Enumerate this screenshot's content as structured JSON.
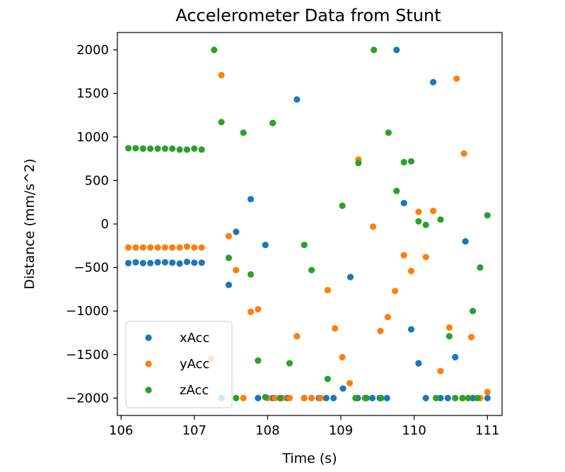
{
  "chart_data": {
    "type": "scatter",
    "title": "Accelerometer Data from Stunt",
    "xlabel": "Time (s)",
    "ylabel": "Distance (mm/s^2)",
    "xlim": [
      105.95,
      111.2
    ],
    "ylim": [
      -2200,
      2200
    ],
    "xticks": [
      106,
      107,
      108,
      109,
      110,
      111
    ],
    "xtick_labels": [
      "106",
      "107",
      "108",
      "109",
      "110",
      "111"
    ],
    "yticks": [
      -2000,
      -1500,
      -1000,
      -500,
      0,
      500,
      1000,
      1500,
      2000
    ],
    "ytick_labels": [
      "−2000",
      "−1500",
      "−1000",
      "−500",
      "0",
      "500",
      "1000",
      "1500",
      "2000"
    ],
    "grid": false,
    "legend_position": "lower-left",
    "series": [
      {
        "name": "xAcc",
        "color": "#1f77b4",
        "points": [
          [
            106.1,
            -450
          ],
          [
            106.2,
            -440
          ],
          [
            106.3,
            -450
          ],
          [
            106.4,
            -450
          ],
          [
            106.5,
            -440
          ],
          [
            106.6,
            -440
          ],
          [
            106.7,
            -445
          ],
          [
            106.8,
            -455
          ],
          [
            106.9,
            -435
          ],
          [
            107.0,
            -445
          ],
          [
            107.1,
            -445
          ],
          [
            107.37,
            -2000
          ],
          [
            107.47,
            -700
          ],
          [
            107.57,
            -90
          ],
          [
            107.77,
            285
          ],
          [
            107.87,
            -2000
          ],
          [
            107.97,
            -240
          ],
          [
            108.07,
            -2000
          ],
          [
            108.17,
            -2000
          ],
          [
            108.27,
            -2000
          ],
          [
            108.4,
            1430
          ],
          [
            108.5,
            -2000
          ],
          [
            108.6,
            -2000
          ],
          [
            108.7,
            -2000
          ],
          [
            108.8,
            -2000
          ],
          [
            108.9,
            -2000
          ],
          [
            109.03,
            -1890
          ],
          [
            109.13,
            -610
          ],
          [
            109.23,
            -2000
          ],
          [
            109.33,
            -2000
          ],
          [
            109.43,
            -2000
          ],
          [
            109.53,
            -2000
          ],
          [
            109.63,
            -2000
          ],
          [
            109.76,
            2000
          ],
          [
            109.86,
            240
          ],
          [
            109.96,
            -1210
          ],
          [
            110.06,
            -1600
          ],
          [
            110.16,
            -2000
          ],
          [
            110.26,
            1630
          ],
          [
            110.36,
            -2000
          ],
          [
            110.46,
            -2000
          ],
          [
            110.56,
            -1530
          ],
          [
            110.66,
            -2000
          ],
          [
            110.7,
            -200
          ],
          [
            110.8,
            -2000
          ],
          [
            110.9,
            -2000
          ],
          [
            111.0,
            -2000
          ]
        ]
      },
      {
        "name": "yAcc",
        "color": "#ff7f0e",
        "points": [
          [
            106.1,
            -270
          ],
          [
            106.2,
            -270
          ],
          [
            106.3,
            -270
          ],
          [
            106.4,
            -270
          ],
          [
            106.5,
            -270
          ],
          [
            106.6,
            -270
          ],
          [
            106.7,
            -270
          ],
          [
            106.8,
            -270
          ],
          [
            106.9,
            -260
          ],
          [
            107.0,
            -270
          ],
          [
            107.1,
            -270
          ],
          [
            107.23,
            -1550
          ],
          [
            107.37,
            1710
          ],
          [
            107.47,
            -140
          ],
          [
            107.57,
            -530
          ],
          [
            107.67,
            -2000
          ],
          [
            107.77,
            -1010
          ],
          [
            107.87,
            -980
          ],
          [
            108.0,
            -2000
          ],
          [
            108.1,
            -2000
          ],
          [
            108.2,
            -2000
          ],
          [
            108.3,
            -2000
          ],
          [
            108.4,
            -1290
          ],
          [
            108.5,
            -2000
          ],
          [
            108.6,
            -2000
          ],
          [
            108.72,
            -2000
          ],
          [
            108.82,
            -760
          ],
          [
            108.92,
            -1200
          ],
          [
            109.02,
            -1530
          ],
          [
            109.12,
            -1830
          ],
          [
            109.24,
            740
          ],
          [
            109.34,
            -2000
          ],
          [
            109.44,
            -30
          ],
          [
            109.54,
            -1230
          ],
          [
            109.64,
            -1070
          ],
          [
            109.74,
            -770
          ],
          [
            109.86,
            -360
          ],
          [
            109.96,
            -540
          ],
          [
            110.06,
            140
          ],
          [
            110.16,
            -380
          ],
          [
            110.26,
            150
          ],
          [
            110.36,
            -1690
          ],
          [
            110.48,
            -1190
          ],
          [
            110.58,
            1670
          ],
          [
            110.68,
            810
          ],
          [
            110.78,
            -1300
          ],
          [
            110.9,
            -2000
          ],
          [
            111.0,
            -1930
          ]
        ]
      },
      {
        "name": "zAcc",
        "color": "#2ca02c",
        "points": [
          [
            106.1,
            870
          ],
          [
            106.2,
            870
          ],
          [
            106.3,
            865
          ],
          [
            106.4,
            865
          ],
          [
            106.5,
            865
          ],
          [
            106.6,
            865
          ],
          [
            106.7,
            865
          ],
          [
            106.8,
            855
          ],
          [
            106.9,
            855
          ],
          [
            107.0,
            865
          ],
          [
            107.1,
            855
          ],
          [
            107.27,
            2000
          ],
          [
            107.37,
            1170
          ],
          [
            107.47,
            -390
          ],
          [
            107.57,
            -2000
          ],
          [
            107.67,
            1050
          ],
          [
            107.77,
            -580
          ],
          [
            107.87,
            -1570
          ],
          [
            107.97,
            -1990
          ],
          [
            108.07,
            1160
          ],
          [
            108.17,
            -2000
          ],
          [
            108.3,
            -1600
          ],
          [
            108.5,
            -240
          ],
          [
            108.6,
            -530
          ],
          [
            108.82,
            -1780
          ],
          [
            109.02,
            210
          ],
          [
            109.24,
            700
          ],
          [
            109.45,
            2000
          ],
          [
            109.65,
            1050
          ],
          [
            109.76,
            380
          ],
          [
            109.86,
            710
          ],
          [
            109.96,
            720
          ],
          [
            110.06,
            30
          ],
          [
            110.16,
            -10
          ],
          [
            110.36,
            50
          ],
          [
            110.48,
            -1290
          ],
          [
            110.9,
            -500
          ],
          [
            110.8,
            -1000
          ],
          [
            111.0,
            100
          ],
          [
            109.2,
            -2000
          ],
          [
            109.35,
            -2000
          ],
          [
            109.55,
            -2000
          ],
          [
            110.3,
            -2000
          ],
          [
            110.56,
            -2000
          ],
          [
            110.66,
            -2000
          ],
          [
            110.74,
            -2000
          ],
          [
            110.86,
            -2000
          ]
        ]
      }
    ]
  }
}
